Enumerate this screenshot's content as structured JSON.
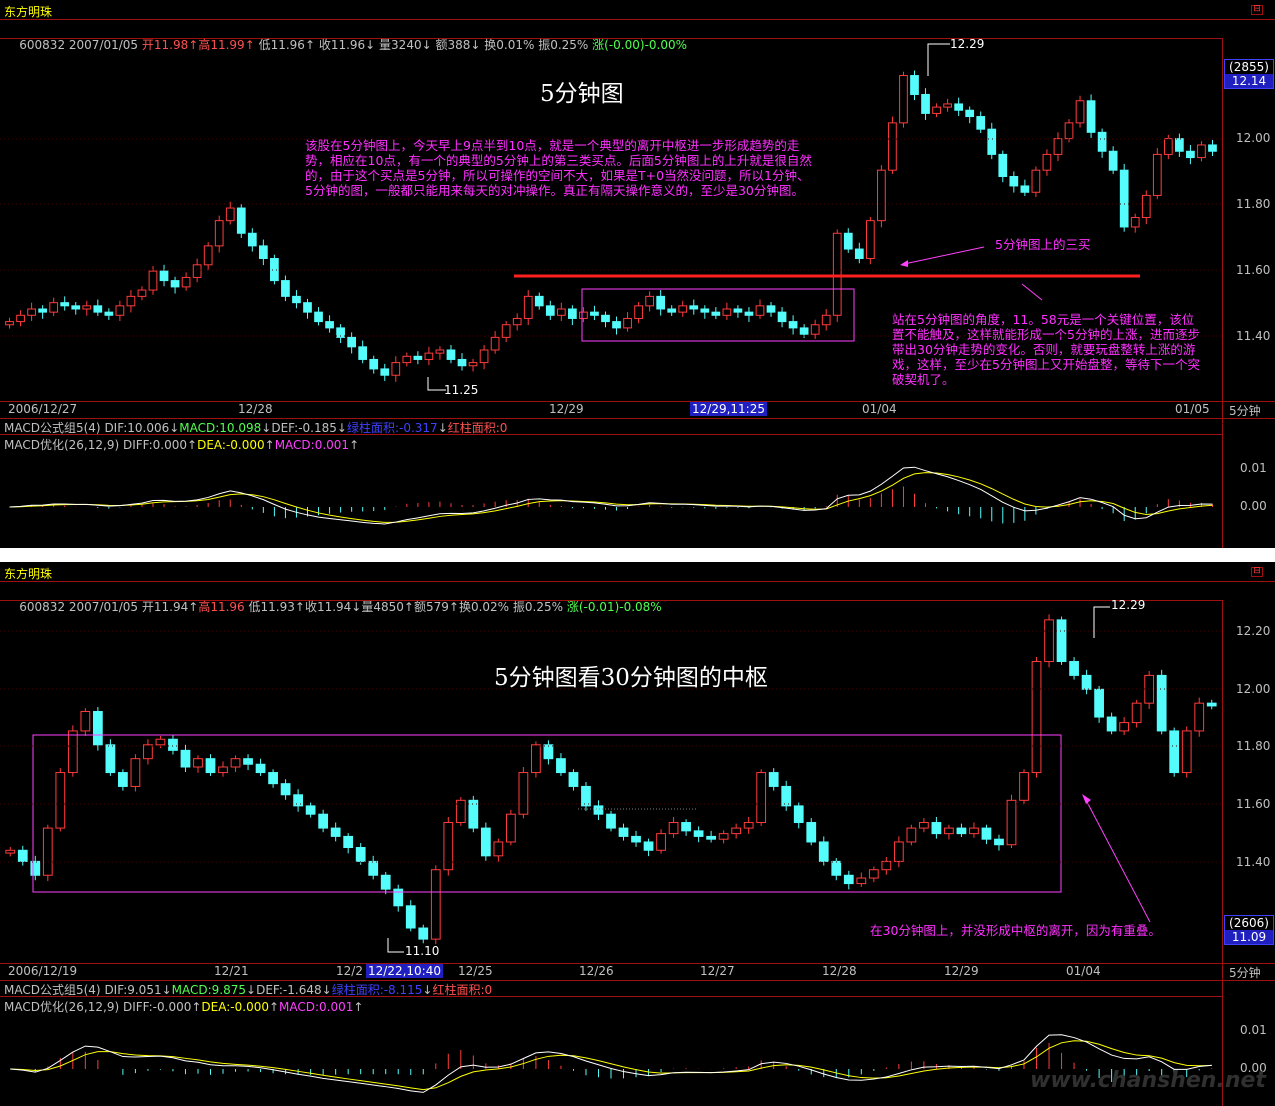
{
  "panels": [
    {
      "stock_name": "东方明珠",
      "info": {
        "code": "600832",
        "date": "2007/01/05",
        "open": "开11.98",
        "high": "高11.99",
        "low": "低11.96",
        "close": "收11.96",
        "volume": "量3240",
        "amount": "额388",
        "turnover": "换0.01%",
        "amplitude": "振0.25%",
        "change": "涨(-0.00)-0.00%"
      },
      "title": "5分钟图",
      "annotation_main": "该股在5分钟图上，今天早上9点半到10点，就是一个典型的离开中枢进一步形成趋势的走势，相应在10点，有一个的典型的5分钟上的第三类买点。后面5分钟图上的上升就是很自然的，由于这个买点是5分钟，所以可操作的空间不大，如果是T+0当然没问题，所以1分钟、5分钟的图，一般都只能用来每天的对冲操作。真正有隔天操作意义的，至少是30分钟图。",
      "annotation_buy": "5分钟图上的三买",
      "annotation_right": "站在5分钟图的角度，11。58元是一个关键位置，该位置不能触及，这样就能形成一个5分钟的上涨，进而逐步带出30分钟走势的变化。否则，就要玩盘整转上涨的游戏，这样，至少在5分钟图上又开始盘整，等待下一个突破契机了。",
      "high_label": "12.29",
      "low_label": "11.25",
      "price_box": {
        "count": "(2855)",
        "price": "12.14"
      },
      "y_axis": [
        "12.00",
        "11.80",
        "11.60",
        "11.40"
      ],
      "dates": [
        "2006/12/27",
        "12/28",
        "12/29",
        "12/29,11:25",
        "01/04",
        "01/05"
      ],
      "period": "5分钟",
      "macd_line1": {
        "name": "MACD公式组5(4)",
        "dif": "DIF:10.006",
        "macd": "MACD:10.098",
        "def": "DEF:-0.185",
        "green_area": "绿柱面积:-0.317",
        "red_area": "红柱面积:0"
      },
      "macd_line2": {
        "name": "MACD优化(26,12,9)",
        "diff": "DIFF:0.000",
        "dea": "DEA:-0.000",
        "macd": "MACD:0.001"
      },
      "macd_axis": [
        "0.01",
        "0.00"
      ]
    },
    {
      "stock_name": "东方明珠",
      "info": {
        "code": "600832",
        "date": "2007/01/05",
        "open": "开11.94",
        "high": "高11.96",
        "low": "低11.93",
        "close": "收11.94",
        "volume": "量4850",
        "amount": "额579",
        "turnover": "换0.02%",
        "amplitude": "振0.25%",
        "change": "涨(-0.01)-0.08%"
      },
      "title": "5分钟图看30分钟图的中枢",
      "annotation_bottom": "在30分钟图上，并没形成中枢的离开，因为有重叠。",
      "high_label": "12.29",
      "low_label": "11.10",
      "price_box": {
        "count": "(2606)",
        "price": "11.09"
      },
      "y_axis": [
        "12.20",
        "12.00",
        "11.80",
        "11.60",
        "11.40"
      ],
      "dates": [
        "2006/12/19",
        "12/21",
        "12/2",
        "12/22,10:40",
        "12/25",
        "12/26",
        "12/27",
        "12/28",
        "12/29",
        "01/04"
      ],
      "period": "5分钟",
      "macd_line1": {
        "name": "MACD公式组5(4)",
        "dif": "DIF:9.051",
        "macd": "MACD:9.875",
        "def": "DEF:-1.648",
        "green_area": "绿柱面积:-8.115",
        "red_area": "红柱面积:0"
      },
      "macd_line2": {
        "name": "MACD优化(26,12,9)",
        "diff": "DIFF:-0.000",
        "dea": "DEA:-0.000",
        "macd": "MACD:0.001"
      },
      "macd_axis": [
        "0.01",
        "0.00"
      ],
      "watermark": "www.chanshen.net"
    }
  ],
  "chart_data": [
    {
      "type": "candlestick",
      "period": "5分钟",
      "dates": [
        "2006/12/27",
        "12/28",
        "12/29",
        "01/04",
        "01/05"
      ],
      "ylim": [
        11.2,
        12.3
      ],
      "high": 12.29,
      "low": 11.25,
      "key_level": 11.58,
      "zhongshu_box": {
        "from": "12/29",
        "to": "01/04",
        "low": 11.37,
        "high": 11.55
      },
      "series_close": [
        11.42,
        11.44,
        11.46,
        11.45,
        11.48,
        11.47,
        11.46,
        11.47,
        11.45,
        11.44,
        11.47,
        11.5,
        11.52,
        11.58,
        11.55,
        11.53,
        11.56,
        11.6,
        11.66,
        11.74,
        11.78,
        11.7,
        11.66,
        11.62,
        11.55,
        11.5,
        11.48,
        11.45,
        11.42,
        11.4,
        11.37,
        11.34,
        11.3,
        11.27,
        11.25,
        11.29,
        11.31,
        11.3,
        11.32,
        11.33,
        11.3,
        11.28,
        11.29,
        11.33,
        11.37,
        11.41,
        11.43,
        11.5,
        11.47,
        11.44,
        11.46,
        11.43,
        11.45,
        11.44,
        11.42,
        11.4,
        11.43,
        11.47,
        11.5,
        11.46,
        11.45,
        11.47,
        11.46,
        11.45,
        11.44,
        11.46,
        11.45,
        11.44,
        11.47,
        11.45,
        11.42,
        11.4,
        11.38,
        11.41,
        11.44,
        11.7,
        11.65,
        11.62,
        11.74,
        11.9,
        12.05,
        12.2,
        12.14,
        12.08,
        12.1,
        12.11,
        12.09,
        12.07,
        12.03,
        11.95,
        11.88,
        11.85,
        11.83,
        11.9,
        11.95,
        12.0,
        12.05,
        12.12,
        12.02,
        11.96,
        11.9,
        11.72,
        11.75,
        11.82,
        11.95,
        12.0,
        11.96,
        11.94,
        11.98,
        11.96
      ]
    },
    {
      "type": "candlestick",
      "period": "5分钟",
      "dates": [
        "2006/12/19",
        "12/21",
        "12/22",
        "12/25",
        "12/26",
        "12/27",
        "12/28",
        "12/29",
        "01/04"
      ],
      "ylim": [
        11.05,
        12.3
      ],
      "high": 12.29,
      "low": 11.1,
      "zhongshu_box": {
        "from": "12/19",
        "to": "01/04",
        "low": 11.3,
        "high": 11.85
      },
      "series_close": [
        11.42,
        11.38,
        11.33,
        11.5,
        11.7,
        11.85,
        11.92,
        11.8,
        11.7,
        11.65,
        11.75,
        11.8,
        11.82,
        11.78,
        11.72,
        11.75,
        11.7,
        11.72,
        11.75,
        11.73,
        11.7,
        11.66,
        11.62,
        11.58,
        11.55,
        11.5,
        11.47,
        11.43,
        11.38,
        11.33,
        11.28,
        11.22,
        11.14,
        11.1,
        11.35,
        11.52,
        11.6,
        11.5,
        11.4,
        11.45,
        11.55,
        11.7,
        11.8,
        11.75,
        11.7,
        11.65,
        11.58,
        11.55,
        11.5,
        11.47,
        11.45,
        11.42,
        11.48,
        11.52,
        11.49,
        11.47,
        11.46,
        11.48,
        11.5,
        11.52,
        11.7,
        11.65,
        11.58,
        11.52,
        11.45,
        11.38,
        11.33,
        11.3,
        11.32,
        11.35,
        11.38,
        11.45,
        11.5,
        11.52,
        11.48,
        11.5,
        11.48,
        11.5,
        11.46,
        11.44,
        11.6,
        11.7,
        12.1,
        12.25,
        12.1,
        12.05,
        12.0,
        11.9,
        11.85,
        11.88,
        11.95,
        12.05,
        11.85,
        11.7,
        11.85,
        11.95,
        11.94
      ]
    }
  ]
}
